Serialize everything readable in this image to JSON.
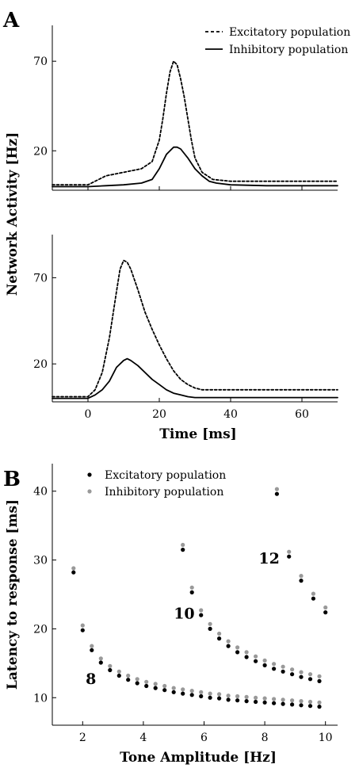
{
  "panel_labels": [
    "A",
    "B"
  ],
  "chart_data": [
    {
      "type": "line",
      "panel": "A",
      "subplot": "top",
      "xlim": [
        -10,
        70
      ],
      "ylim": [
        -2,
        90
      ],
      "yticks": [
        20,
        70
      ],
      "ylabel": "Network Activity [Hz]",
      "legend": {
        "position": "top-right",
        "entries": [
          "Excitatory population",
          "Inhibitory population"
        ]
      },
      "series": [
        {
          "name": "Excitatory population",
          "style": "dashed",
          "x": [
            -10,
            0,
            2,
            5,
            10,
            15,
            18,
            20,
            21,
            22,
            23,
            24,
            25,
            26,
            27,
            28,
            29,
            30,
            32,
            35,
            40,
            50,
            70
          ],
          "y": [
            1,
            1,
            3,
            6,
            8,
            10,
            14,
            26,
            38,
            52,
            64,
            70,
            68,
            60,
            50,
            38,
            26,
            16,
            8,
            4,
            3,
            3,
            3
          ]
        },
        {
          "name": "Inhibitory population",
          "style": "solid",
          "x": [
            -10,
            0,
            5,
            10,
            15,
            18,
            20,
            22,
            24,
            25,
            26,
            28,
            30,
            32,
            34,
            36,
            40,
            50,
            70
          ],
          "y": [
            0,
            0,
            0.5,
            1,
            2,
            4,
            10,
            18,
            22,
            22,
            21,
            16,
            10,
            6,
            3,
            2,
            1,
            0.5,
            0.5
          ]
        }
      ]
    },
    {
      "type": "line",
      "panel": "A",
      "subplot": "bottom",
      "xlim": [
        -10,
        70
      ],
      "ylim": [
        -2,
        95
      ],
      "xticks": [
        0,
        20,
        40,
        60
      ],
      "yticks": [
        20,
        70
      ],
      "xlabel": "Time [ms]",
      "series": [
        {
          "name": "Excitatory population",
          "style": "dashed",
          "x": [
            -10,
            0,
            2,
            4,
            6,
            8,
            9,
            10,
            11,
            12,
            14,
            16,
            18,
            20,
            22,
            24,
            26,
            28,
            30,
            32,
            35,
            40,
            50,
            70
          ],
          "y": [
            1,
            1,
            5,
            15,
            35,
            62,
            75,
            80,
            79,
            75,
            63,
            50,
            40,
            31,
            23,
            16,
            11,
            8,
            6,
            5,
            5,
            5,
            5,
            5
          ]
        },
        {
          "name": "Inhibitory population",
          "style": "solid",
          "x": [
            -10,
            0,
            2,
            4,
            6,
            8,
            10,
            11,
            12,
            14,
            16,
            18,
            20,
            22,
            24,
            26,
            28,
            30,
            32,
            35,
            40,
            50,
            70
          ],
          "y": [
            0,
            0,
            2,
            5,
            10,
            18,
            22,
            23,
            22,
            19,
            15,
            11,
            8,
            5,
            3,
            2,
            1,
            0.5,
            0.5,
            0.5,
            0.5,
            0.5,
            0.5
          ]
        }
      ]
    },
    {
      "type": "scatter",
      "panel": "B",
      "xlim": [
        1,
        10.4
      ],
      "ylim": [
        6,
        44
      ],
      "xticks": [
        2,
        4,
        6,
        8,
        10
      ],
      "yticks": [
        10,
        20,
        30,
        40
      ],
      "xlabel": "Tone Amplitude [Hz]",
      "ylabel": "Latency to response [ms]",
      "legend": {
        "position": "top-left",
        "entries": [
          "Excitatory population",
          "Inhibitory population"
        ]
      },
      "annotations": [
        {
          "text": "8",
          "x": 2.1,
          "y": 12
        },
        {
          "text": "10",
          "x": 5.0,
          "y": 21.5
        },
        {
          "text": "12",
          "x": 7.8,
          "y": 29.5
        }
      ],
      "series": [
        {
          "name": "Excitatory population",
          "color": "#000000",
          "x": [
            1.7,
            2.0,
            2.3,
            2.6,
            2.9,
            3.2,
            3.5,
            3.8,
            4.1,
            4.4,
            4.7,
            5.0,
            5.3,
            5.6,
            5.9,
            6.2,
            6.5,
            6.8,
            7.1,
            7.4,
            7.7,
            8.0,
            8.3,
            8.6,
            8.9,
            9.2,
            9.5,
            9.8,
            5.3,
            5.6,
            5.9,
            6.2,
            6.5,
            6.8,
            7.1,
            7.4,
            7.7,
            8.0,
            8.3,
            8.6,
            8.9,
            9.2,
            9.5,
            9.8,
            8.4,
            8.8,
            9.2,
            9.6,
            10.0
          ],
          "y": [
            28.2,
            19.8,
            16.9,
            15.1,
            14.0,
            13.2,
            12.6,
            12.1,
            11.7,
            11.4,
            11.1,
            10.8,
            10.6,
            10.4,
            10.2,
            10.0,
            9.9,
            9.7,
            9.6,
            9.5,
            9.4,
            9.3,
            9.2,
            9.1,
            9.0,
            8.9,
            8.8,
            8.7,
            31.5,
            25.3,
            22.0,
            20.0,
            18.6,
            17.5,
            16.6,
            15.9,
            15.3,
            14.7,
            14.2,
            13.8,
            13.4,
            13.0,
            12.7,
            12.4,
            39.6,
            30.5,
            27.0,
            24.4,
            22.4
          ],
          "note_groups": [
            8,
            10,
            12
          ]
        },
        {
          "name": "Inhibitory population",
          "color": "#999999",
          "x": [
            1.7,
            2.0,
            2.3,
            2.6,
            2.9,
            3.2,
            3.5,
            3.8,
            4.1,
            4.4,
            4.7,
            5.0,
            5.3,
            5.6,
            5.9,
            6.2,
            6.5,
            6.8,
            7.1,
            7.4,
            7.7,
            8.0,
            8.3,
            8.6,
            8.9,
            9.2,
            9.5,
            9.8,
            5.3,
            5.6,
            5.9,
            6.2,
            6.5,
            6.8,
            7.1,
            7.4,
            7.7,
            8.0,
            8.3,
            8.6,
            8.9,
            9.2,
            9.5,
            9.8,
            8.4,
            8.8,
            9.2,
            9.6,
            10.0
          ],
          "y": [
            28.8,
            20.5,
            17.5,
            15.7,
            14.6,
            13.8,
            13.2,
            12.7,
            12.3,
            12.0,
            11.7,
            11.4,
            11.2,
            11.0,
            10.8,
            10.6,
            10.5,
            10.3,
            10.2,
            10.1,
            10.0,
            9.9,
            9.8,
            9.7,
            9.6,
            9.5,
            9.4,
            9.3,
            32.2,
            26.0,
            22.7,
            20.7,
            19.3,
            18.2,
            17.3,
            16.6,
            16.0,
            15.4,
            14.9,
            14.5,
            14.1,
            13.7,
            13.4,
            13.1,
            40.3,
            31.2,
            27.7,
            25.1,
            23.1
          ]
        }
      ]
    }
  ]
}
